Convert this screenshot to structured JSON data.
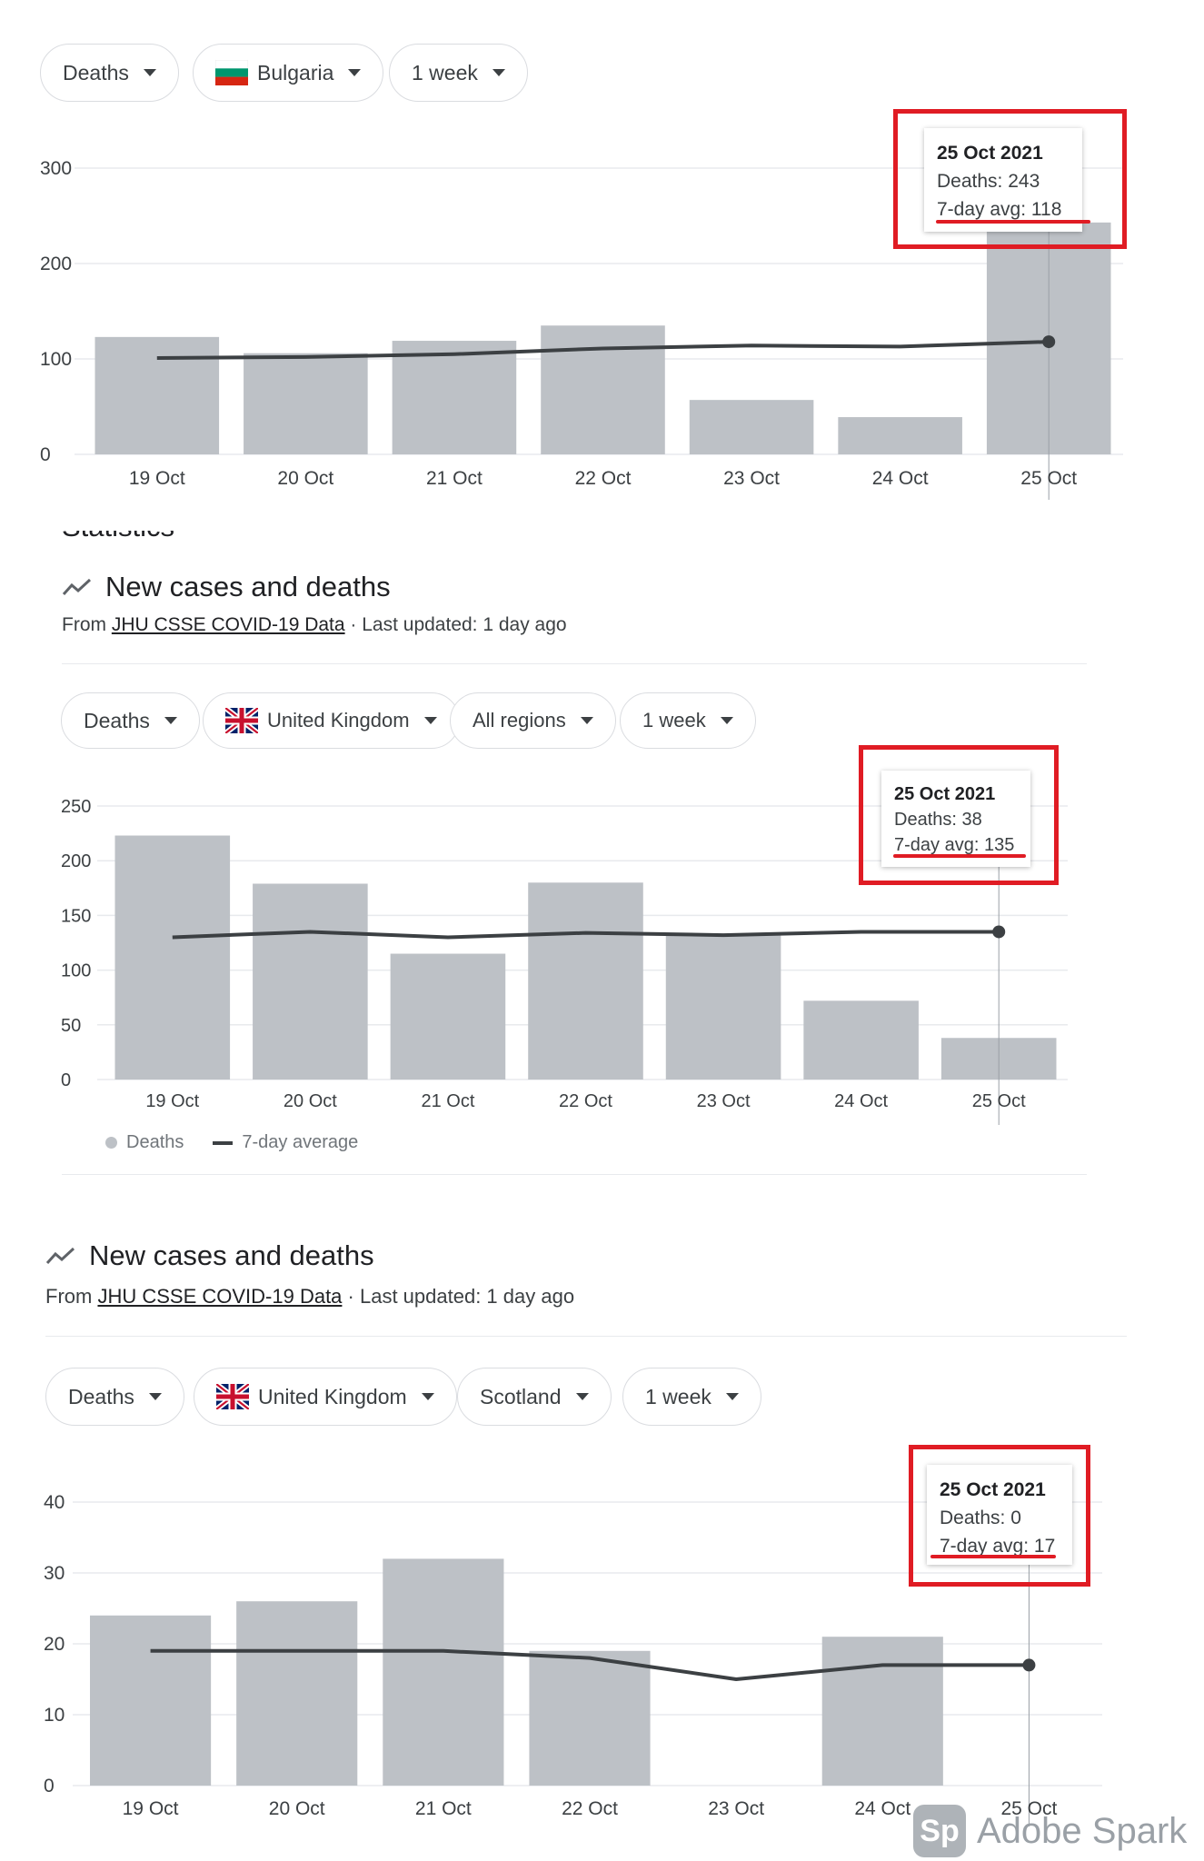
{
  "panel1": {
    "filters": {
      "metric": "Deaths",
      "country": "Bulgaria",
      "period": "1 week"
    },
    "tooltip": {
      "date": "25 Oct 2021",
      "deaths": "Deaths: 243",
      "avg": "7-day avg: 118"
    }
  },
  "cut_heading": "Statistics",
  "panel2": {
    "title": "New cases and deaths",
    "source_prefix": "From ",
    "source_link": "JHU CSSE COVID-19 Data",
    "source_suffix": " · Last updated: 1 day ago",
    "filters": {
      "metric": "Deaths",
      "country": "United Kingdom",
      "region": "All regions",
      "period": "1 week"
    },
    "tooltip": {
      "date": "25 Oct 2021",
      "deaths": "Deaths: 38",
      "avg": "7-day avg: 135"
    },
    "legend": {
      "bars": "Deaths",
      "line": "7-day average"
    }
  },
  "panel3": {
    "title": "New cases and deaths",
    "source_prefix": "From ",
    "source_link": "JHU CSSE COVID-19 Data",
    "source_suffix": " · Last updated: 1 day ago",
    "filters": {
      "metric": "Deaths",
      "country": "United Kingdom",
      "region": "Scotland",
      "period": "1 week"
    },
    "tooltip": {
      "date": "25 Oct 2021",
      "deaths": "Deaths: 0",
      "avg": "7-day avg: 17"
    }
  },
  "watermark": {
    "logo": "Sp",
    "text": "Adobe Spark"
  },
  "colors": {
    "bar": "#bdc1c6",
    "line": "#3c4043",
    "highlight": "#e01c24",
    "grid": "#e8eaed"
  },
  "chart_data": [
    {
      "type": "bar",
      "categories": [
        "19 Oct",
        "20 Oct",
        "21 Oct",
        "22 Oct",
        "23 Oct",
        "24 Oct",
        "25 Oct"
      ],
      "series": [
        {
          "name": "Deaths",
          "type": "bar",
          "values": [
            123,
            106,
            119,
            135,
            57,
            39,
            243
          ]
        },
        {
          "name": "7-day average",
          "type": "line",
          "values": [
            101,
            102,
            105,
            111,
            114,
            113,
            118
          ]
        }
      ],
      "ylim": [
        0,
        300
      ],
      "yticks": [
        0,
        100,
        200,
        300
      ],
      "grid": true
    },
    {
      "type": "bar",
      "categories": [
        "19 Oct",
        "20 Oct",
        "21 Oct",
        "22 Oct",
        "23 Oct",
        "24 Oct",
        "25 Oct"
      ],
      "series": [
        {
          "name": "Deaths",
          "type": "bar",
          "values": [
            223,
            179,
            115,
            180,
            133,
            72,
            38
          ]
        },
        {
          "name": "7-day average",
          "type": "line",
          "values": [
            130,
            135,
            130,
            134,
            132,
            135,
            135
          ]
        }
      ],
      "ylim": [
        0,
        250
      ],
      "yticks": [
        0,
        50,
        100,
        150,
        200,
        250
      ],
      "grid": true,
      "legend": "bottom-left"
    },
    {
      "type": "bar",
      "categories": [
        "19 Oct",
        "20 Oct",
        "21 Oct",
        "22 Oct",
        "23 Oct",
        "24 Oct",
        "25 Oct"
      ],
      "series": [
        {
          "name": "Deaths",
          "type": "bar",
          "values": [
            24,
            26,
            32,
            19,
            0,
            21,
            0
          ]
        },
        {
          "name": "7-day average",
          "type": "line",
          "values": [
            19,
            19,
            19,
            18,
            15,
            17,
            17
          ]
        }
      ],
      "ylim": [
        0,
        40
      ],
      "yticks": [
        0,
        10,
        20,
        30,
        40
      ],
      "grid": true
    }
  ]
}
